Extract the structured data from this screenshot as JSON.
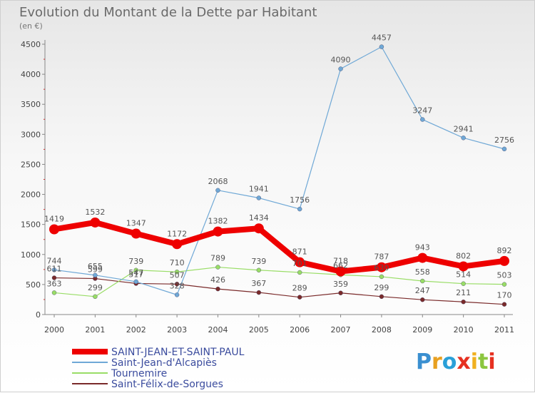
{
  "chart_data": {
    "type": "line",
    "title": "Evolution du Montant de la Dette par Habitant",
    "subtitle": "(en €)",
    "xlabel": "",
    "ylabel": "",
    "ylim": [
      0,
      4500
    ],
    "yticks": [
      0,
      500,
      1000,
      1500,
      2000,
      2500,
      3000,
      3500,
      4000,
      4500
    ],
    "x": [
      "2000",
      "2001",
      "2002",
      "2003",
      "2004",
      "2005",
      "2006",
      "2007",
      "2008",
      "2009",
      "2010",
      "2011"
    ],
    "grid": false,
    "legend_position": "bottom-left",
    "series": [
      {
        "name": "SAINT-JEAN-ET-SAINT-PAUL",
        "color": "#ee0000",
        "values": [
          1419,
          1532,
          1347,
          1172,
          1382,
          1434,
          871,
          718,
          787,
          943,
          802,
          892
        ]
      },
      {
        "name": "Saint-Jean-d'Alcapiès",
        "color": "#6fa8d6",
        "values": [
          744,
          655,
          547,
          328,
          2068,
          1941,
          1756,
          4090,
          4457,
          3247,
          2941,
          2756
        ]
      },
      {
        "name": "Tournemire",
        "color": "#99dd66",
        "values": [
          363,
          299,
          739,
          710,
          789,
          739,
          701,
          662,
          630,
          558,
          514,
          503
        ]
      },
      {
        "name": "Saint-Félix-de-Sorgues",
        "color": "#7a2a2a",
        "values": [
          611,
          599,
          517,
          507,
          426,
          367,
          289,
          359,
          299,
          247,
          211,
          170
        ]
      }
    ]
  },
  "logo": {
    "text": "Proxiti"
  }
}
